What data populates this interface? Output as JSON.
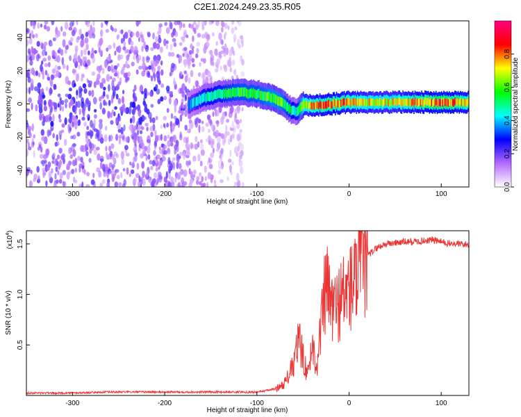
{
  "title": "C2E1.2024.249.23.35.R05",
  "chart_data": [
    {
      "type": "heatmap",
      "xlabel": "Height of straight line (km)",
      "ylabel": "Frequency (Hz)",
      "xlim": [
        -350,
        130
      ],
      "ylim": [
        -50,
        50
      ],
      "xticks": [
        -300,
        -200,
        -100,
        0,
        100
      ],
      "yticks": [
        -40,
        -20,
        0,
        20,
        40
      ],
      "colorbar": {
        "label": "Normalized spectral amplitude",
        "range": [
          0,
          1
        ],
        "ticks": [
          "0.0",
          "0.2",
          "0.4",
          "0.6",
          "0.8"
        ],
        "colormap": [
          "#ffffff",
          "#b469ff",
          "#0000ff",
          "#00ffff",
          "#00ff00",
          "#ffff00",
          "#ff0000",
          "#ff0080"
        ]
      },
      "ridge": {
        "description_x": [
          -175,
          -160,
          -140,
          -120,
          -100,
          -85,
          -75,
          -65,
          -58,
          -50,
          -40,
          -20,
          0,
          20,
          50,
          80,
          100,
          130
        ],
        "center_freq": [
          -1,
          3,
          6,
          7,
          6,
          4,
          1,
          -3,
          -5,
          -1,
          -1,
          0,
          1,
          1,
          1,
          1,
          1,
          1
        ],
        "amplitude": [
          0.35,
          0.45,
          0.5,
          0.55,
          0.55,
          0.6,
          0.6,
          0.5,
          0.45,
          0.7,
          0.75,
          0.8,
          0.75,
          0.7,
          0.7,
          0.8,
          0.85,
          0.75
        ]
      },
      "noise_region_x": [
        -350,
        -115
      ]
    },
    {
      "type": "line",
      "xlabel": "Height of straight line (km)",
      "ylabel": "SNR (10 * v/v)",
      "multiplier": "(x10",
      "multiplier_exp": "4",
      "multiplier_close": ")",
      "xlim": [
        -350,
        130
      ],
      "ylim": [
        0,
        1.63
      ],
      "xticks": [
        -300,
        -200,
        -100,
        0,
        100
      ],
      "yticks": [
        "0.5",
        "1.0",
        "1.5"
      ],
      "series": [
        {
          "color": "#ee3333",
          "x": [
            -350,
            -300,
            -260,
            -200,
            -150,
            -100,
            -80,
            -70,
            -60,
            -55,
            -50,
            -45,
            -40,
            -35,
            -30,
            -25,
            -20,
            -15,
            -10,
            -5,
            0,
            5,
            10,
            15,
            20,
            30,
            40,
            50,
            60,
            70,
            80,
            90,
            100,
            110,
            120,
            130
          ],
          "y": [
            0.02,
            0.02,
            0.03,
            0.03,
            0.03,
            0.03,
            0.06,
            0.12,
            0.3,
            0.55,
            0.4,
            0.2,
            0.5,
            0.3,
            0.7,
            1.1,
            0.9,
            0.85,
            0.95,
            1.0,
            1.05,
            1.1,
            1.2,
            1.3,
            1.38,
            1.46,
            1.5,
            1.51,
            1.52,
            1.52,
            1.53,
            1.54,
            1.52,
            1.5,
            1.5,
            1.49
          ]
        }
      ]
    }
  ]
}
